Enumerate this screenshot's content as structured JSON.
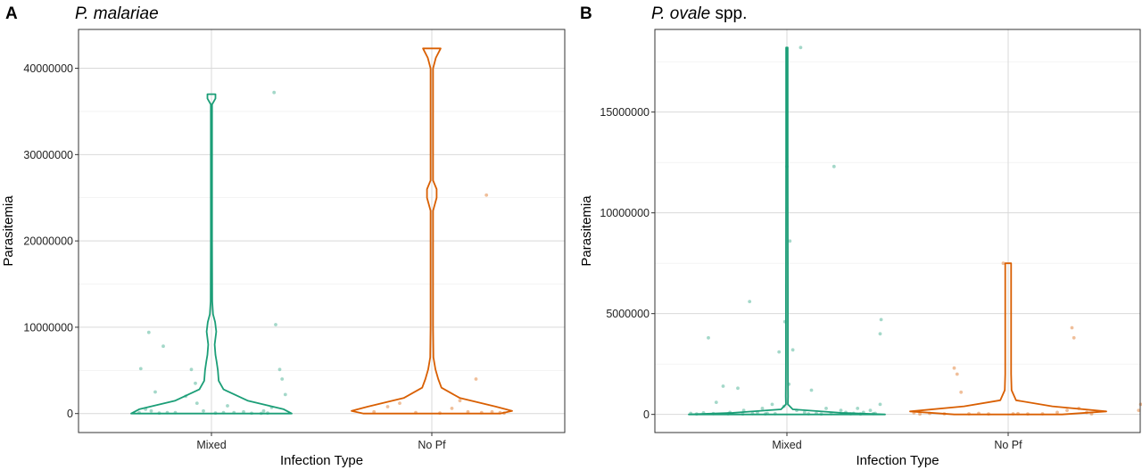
{
  "colors": {
    "mixed": "#1b9e77",
    "no_pf": "#d95f02"
  },
  "chart_data": [
    {
      "panel": "A",
      "title_italic": "P. malariae",
      "title_plain": "",
      "type": "violin",
      "xlabel": "Infection Type",
      "ylabel": "Parasitemia",
      "categories": [
        "Mixed",
        "No Pf"
      ],
      "ylim": [
        -2200000,
        44500000
      ],
      "yticks": [
        0,
        10000000,
        20000000,
        30000000,
        40000000
      ],
      "ytick_labels": [
        "0",
        "10000000",
        "20000000",
        "30000000",
        "40000000"
      ],
      "grid": true,
      "series": [
        {
          "category": "Mixed",
          "max": 37000000,
          "profile": [
            [
              0,
              1
            ],
            [
              500000,
              0.9
            ],
            [
              1500000,
              0.45
            ],
            [
              2800000,
              0.15
            ],
            [
              3800000,
              0.09
            ],
            [
              5000000,
              0.08
            ],
            [
              6000000,
              0.065
            ],
            [
              6800000,
              0.05
            ],
            [
              8000000,
              0.04
            ],
            [
              9500000,
              0.06
            ],
            [
              10600000,
              0.045
            ],
            [
              11500000,
              0.02
            ],
            [
              13000000,
              0.01
            ],
            [
              20000000,
              0.008
            ],
            [
              35800000,
              0.008
            ],
            [
              36500000,
              0.05
            ],
            [
              37000000,
              0.05
            ]
          ],
          "points": [
            [
              -0.88,
              5200000
            ],
            [
              -0.78,
              9400000
            ],
            [
              -0.6,
              7800000
            ],
            [
              -0.7,
              2500000
            ],
            [
              -0.82,
              500000
            ],
            [
              -0.75,
              300000
            ],
            [
              -0.55,
              100000
            ],
            [
              -0.45,
              100000
            ],
            [
              -0.32,
              2000000
            ],
            [
              -0.25,
              5100000
            ],
            [
              -0.2,
              3500000
            ],
            [
              -0.18,
              1200000
            ],
            [
              -0.1,
              300000
            ],
            [
              0.05,
              50000
            ],
            [
              0.15,
              100000
            ],
            [
              0.2,
              900000
            ],
            [
              0.28,
              100000
            ],
            [
              0.4,
              200000
            ],
            [
              0.5,
              30000
            ],
            [
              0.62,
              20000
            ],
            [
              0.7,
              50000
            ],
            [
              0.78,
              37200000
            ],
            [
              0.8,
              10300000
            ],
            [
              0.85,
              5100000
            ],
            [
              0.92,
              2200000
            ],
            [
              0.88,
              4000000
            ],
            [
              0.75,
              700000
            ],
            [
              0.65,
              300000
            ],
            [
              -0.9,
              100000
            ],
            [
              -0.65,
              50000
            ]
          ]
        },
        {
          "category": "No Pf",
          "max": 42300000,
          "profile": [
            [
              0,
              0.85
            ],
            [
              300000,
              1
            ],
            [
              800000,
              0.8
            ],
            [
              1800000,
              0.35
            ],
            [
              3000000,
              0.12
            ],
            [
              4000000,
              0.08
            ],
            [
              5100000,
              0.045
            ],
            [
              6500000,
              0.02
            ],
            [
              10000000,
              0.015
            ],
            [
              23500000,
              0.015
            ],
            [
              25000000,
              0.06
            ],
            [
              26000000,
              0.06
            ],
            [
              27000000,
              0.015
            ],
            [
              40000000,
              0.015
            ],
            [
              41200000,
              0.05
            ],
            [
              42300000,
              0.11
            ]
          ],
          "points": [
            [
              -0.72,
              200000
            ],
            [
              -0.55,
              800000
            ],
            [
              -0.4,
              1200000
            ],
            [
              -0.2,
              100000
            ],
            [
              0.1,
              50000
            ],
            [
              0.25,
              600000
            ],
            [
              0.35,
              1500000
            ],
            [
              0.45,
              200000
            ],
            [
              0.55,
              4000000
            ],
            [
              0.62,
              100000
            ],
            [
              0.68,
              25300000
            ],
            [
              0.75,
              200000
            ],
            [
              0.85,
              100000
            ],
            [
              0.9,
              50000
            ]
          ]
        }
      ]
    },
    {
      "panel": "B",
      "title_italic": "P. ovale",
      "title_plain": " spp.",
      "type": "violin",
      "xlabel": "Infection Type",
      "ylabel": "Parasitemia",
      "categories": [
        "Mixed",
        "No Pf"
      ],
      "ylim": [
        -900000,
        19100000
      ],
      "yticks": [
        0,
        5000000,
        10000000,
        15000000
      ],
      "ytick_labels": [
        "0",
        "5000000",
        "10000000",
        "15000000"
      ],
      "grid": true,
      "series": [
        {
          "category": "Mixed",
          "max": 18200000,
          "profile": [
            [
              0,
              1
            ],
            [
              80000,
              0.55
            ],
            [
              250000,
              0.06
            ],
            [
              500000,
              0.01
            ],
            [
              900000,
              0.012
            ],
            [
              1500000,
              0.011
            ],
            [
              3000000,
              0.01
            ],
            [
              6000000,
              0.01
            ],
            [
              9000000,
              0.009
            ],
            [
              13000000,
              0.008
            ],
            [
              18200000,
              0.008
            ]
          ],
          "points": [
            [
              -0.98,
              50000
            ],
            [
              -0.92,
              20000
            ],
            [
              -0.85,
              80000
            ],
            [
              -0.8,
              3800000
            ],
            [
              -0.72,
              600000
            ],
            [
              -0.65,
              1400000
            ],
            [
              -0.58,
              100000
            ],
            [
              -0.5,
              1300000
            ],
            [
              -0.44,
              200000
            ],
            [
              -0.38,
              5600000
            ],
            [
              -0.3,
              100000
            ],
            [
              -0.25,
              300000
            ],
            [
              -0.2,
              50000
            ],
            [
              -0.15,
              500000
            ],
            [
              -0.08,
              3100000
            ],
            [
              -0.03,
              400000
            ],
            [
              0.0,
              12300000
            ],
            [
              0.03,
              8600000
            ],
            [
              0.06,
              3200000
            ],
            [
              0.1,
              200000
            ],
            [
              0.14,
              18200000
            ],
            [
              0.18,
              100000
            ],
            [
              0.25,
              1200000
            ],
            [
              0.3,
              50000
            ],
            [
              0.4,
              300000
            ],
            [
              0.48,
              12300000
            ],
            [
              0.55,
              200000
            ],
            [
              0.6,
              100000
            ],
            [
              0.68,
              50000
            ],
            [
              0.72,
              300000
            ],
            [
              0.78,
              100000
            ],
            [
              0.85,
              200000
            ],
            [
              0.9,
              50000
            ],
            [
              0.95,
              500000
            ],
            [
              0.96,
              4700000
            ],
            [
              0.95,
              4000000
            ],
            [
              -0.6,
              30000
            ],
            [
              -0.45,
              20000
            ],
            [
              -0.35,
              40000
            ],
            [
              -0.22,
              25000
            ],
            [
              -0.12,
              35000
            ],
            [
              0.22,
              30000
            ],
            [
              0.35,
              20000
            ],
            [
              0.45,
              40000
            ],
            [
              0.65,
              30000
            ],
            [
              0.75,
              20000
            ],
            [
              0.88,
              40000
            ],
            [
              -0.75,
              40000
            ],
            [
              0.02,
              1500000
            ],
            [
              -0.02,
              4600000
            ]
          ]
        },
        {
          "category": "No Pf",
          "max": 7500000,
          "profile": [
            [
              0,
              0.55
            ],
            [
              150000,
              1
            ],
            [
              400000,
              0.45
            ],
            [
              700000,
              0.08
            ],
            [
              1200000,
              0.035
            ],
            [
              2000000,
              0.03
            ],
            [
              4000000,
              0.03
            ],
            [
              7500000,
              0.03
            ]
          ],
          "points": [
            [
              -0.96,
              80000
            ],
            [
              -0.9,
              20000
            ],
            [
              -0.8,
              50000
            ],
            [
              -0.65,
              30000
            ],
            [
              -0.55,
              2300000
            ],
            [
              -0.52,
              2000000
            ],
            [
              -0.48,
              1100000
            ],
            [
              -0.4,
              30000
            ],
            [
              -0.3,
              50000
            ],
            [
              -0.2,
              20000
            ],
            [
              -0.05,
              7500000
            ],
            [
              0.05,
              30000
            ],
            [
              0.1,
              40000
            ],
            [
              0.2,
              20000
            ],
            [
              0.35,
              30000
            ],
            [
              0.5,
              100000
            ],
            [
              0.6,
              200000
            ],
            [
              0.65,
              4300000
            ],
            [
              0.67,
              3800000
            ],
            [
              0.72,
              300000
            ],
            [
              0.8,
              100000
            ],
            [
              0.85,
              30000
            ],
            [
              1.35,
              500000
            ],
            [
              1.33,
              200000
            ]
          ]
        }
      ]
    }
  ]
}
